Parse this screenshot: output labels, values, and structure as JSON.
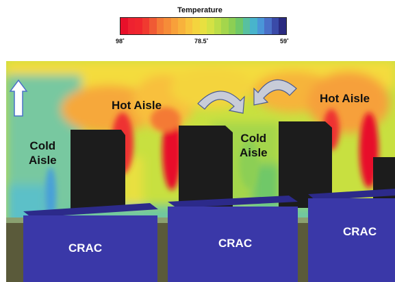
{
  "legend": {
    "title": "Temperature",
    "max_label": "98˚",
    "mid_label": "78.5˚",
    "min_label": "59˚",
    "colors": [
      "#e8102a",
      "#ee2230",
      "#f0262e",
      "#f03a30",
      "#f05a34",
      "#f47a36",
      "#f68c38",
      "#f8a03a",
      "#f8b23c",
      "#f8c43e",
      "#f4d43e",
      "#e8e040",
      "#d4e244",
      "#bcdd48",
      "#a4d64c",
      "#8ccf54",
      "#70c868",
      "#58c0a0",
      "#48b4cc",
      "#4a96d8",
      "#4a70c8",
      "#3a4aa8",
      "#2a2a80"
    ]
  },
  "labels": {
    "hot_aisle_left": "Hot Aisle",
    "hot_aisle_right": "Hot Aisle",
    "cold_aisle_left_1": "Cold",
    "cold_aisle_left_2": "Aisle",
    "cold_aisle_mid_1": "Cold",
    "cold_aisle_mid_2": "Aisle",
    "crac_left": "CRAC",
    "crac_mid": "CRAC",
    "crac_right": "CRAC"
  },
  "icons": [
    "up-arrow-icon",
    "recirculation-arrow-icon"
  ],
  "colors": {
    "crac_unit": "#3a38a8",
    "rack": "#1c1c1c",
    "floor": "#5a5a3a"
  }
}
